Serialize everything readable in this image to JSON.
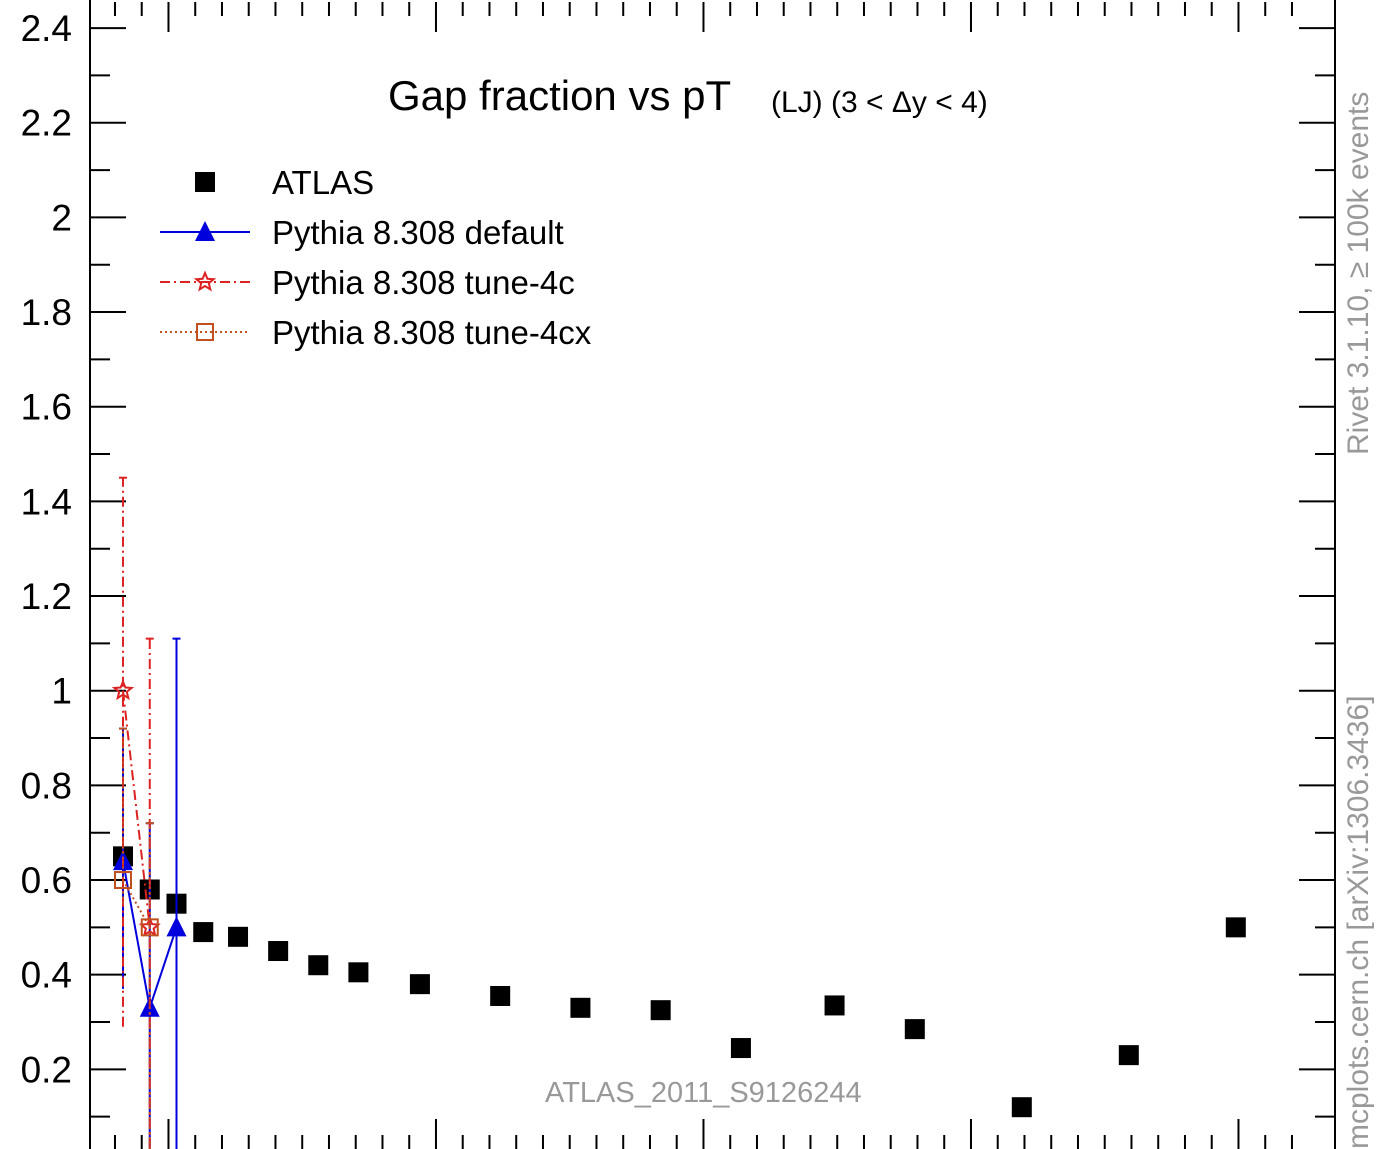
{
  "chart_data": {
    "type": "scatter",
    "title_main": "Gap fraction vs pT",
    "title_sub": "(LJ) (3 < Δy < 4)",
    "ylim": [
      0,
      2.4
    ],
    "xlim": [
      70,
      520
    ],
    "y_ticks": [
      "0.2",
      "0.4",
      "0.6",
      "0.8",
      "1",
      "1.2",
      "1.4",
      "1.6",
      "1.8",
      "2",
      "2.2",
      "2.4"
    ],
    "y_tick_values": [
      0.2,
      0.4,
      0.6,
      0.8,
      1.0,
      1.2,
      1.4,
      1.6,
      1.8,
      2.0,
      2.2,
      2.4
    ],
    "x_major_ticks": [
      100,
      200,
      300,
      400,
      500
    ],
    "legend": {
      "position": "top-left",
      "entries": [
        "ATLAS",
        "Pythia 8.308 default",
        "Pythia 8.308 tune-4c",
        "Pythia 8.308 tune-4cx"
      ]
    },
    "series": [
      {
        "name": "ATLAS",
        "color": "#000000",
        "marker": "square",
        "x": [
          83,
          93,
          103,
          113,
          126,
          141,
          156,
          171,
          194,
          224,
          254,
          284,
          314,
          349,
          379,
          419,
          459,
          499
        ],
        "y": [
          0.65,
          0.58,
          0.55,
          0.49,
          0.48,
          0.45,
          0.42,
          0.405,
          0.38,
          0.355,
          0.33,
          0.325,
          0.245,
          0.335,
          0.285,
          0.12,
          0.23,
          0.5
        ]
      },
      {
        "name": "Pythia 8.308 default",
        "color": "#0000dd",
        "marker": "triangle",
        "x": [
          83,
          93,
          103
        ],
        "y": [
          0.64,
          0.33,
          0.5
        ],
        "err_low": [
          0.37,
          0.0,
          0.0
        ],
        "err_high": [
          0.92,
          0.72,
          1.11
        ]
      },
      {
        "name": "Pythia 8.308 tune-4c",
        "color": "#dd2222",
        "marker": "star",
        "x": [
          83,
          93
        ],
        "y": [
          1.0,
          0.5
        ],
        "err_low": [
          0.29,
          0.0
        ],
        "err_high": [
          1.45,
          1.11
        ]
      },
      {
        "name": "Pythia 8.308 tune-4cx",
        "color": "#c05020",
        "marker": "open-square",
        "x": [
          83,
          93
        ],
        "y": [
          0.6,
          0.5
        ],
        "err_low": [
          0.55,
          0.0
        ],
        "err_high": [
          0.92,
          0.72
        ]
      }
    ]
  },
  "side_label_top": "Rivet 3.1.10, ≥ 100k events",
  "side_label_bottom": "mcplots.cern.ch [arXiv:1306.3436]",
  "watermark": "ATLAS_2011_S9126244"
}
